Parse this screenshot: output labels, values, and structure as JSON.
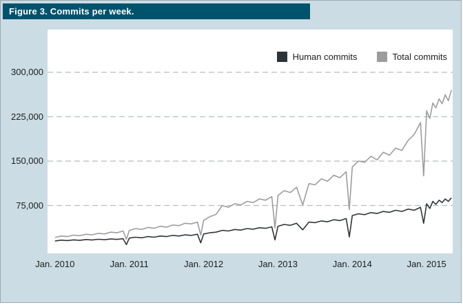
{
  "figure": {
    "title": "Figure 3. Commits per week."
  },
  "colors": {
    "header_bg": "#00536d",
    "page_bg": "#ccdce4",
    "panel_bg": "#ffffff",
    "grid": "#b5bcc0",
    "human_line": "#2e3338",
    "total_line": "#9c9c9c",
    "text": "#1b1b1b"
  },
  "chart_data": {
    "type": "line",
    "title": "Commits per week",
    "xlabel": "",
    "ylabel": "",
    "grid": "dashed-horizontal",
    "legend_position": "top-right",
    "xlim": [
      2009.9,
      2015.35
    ],
    "ylim": [
      0,
      300000
    ],
    "y_ticks": [
      {
        "value": 75000,
        "label": "75,000"
      },
      {
        "value": 150000,
        "label": "150,000"
      },
      {
        "value": 225000,
        "label": "225,000"
      },
      {
        "value": 300000,
        "label": "300,000"
      }
    ],
    "x_ticks": [
      {
        "value": 2010,
        "label": "Jan. 2010"
      },
      {
        "value": 2011,
        "label": "Jan. 2011"
      },
      {
        "value": 2012,
        "label": "Jan. 2012"
      },
      {
        "value": 2013,
        "label": "Jan. 2013"
      },
      {
        "value": 2014,
        "label": "Jan. 2014"
      },
      {
        "value": 2015,
        "label": "Jan. 2015"
      }
    ],
    "x": [
      2010.0,
      2010.083,
      2010.167,
      2010.25,
      2010.333,
      2010.417,
      2010.5,
      2010.583,
      2010.667,
      2010.75,
      2010.833,
      2010.917,
      2010.96,
      2011.0,
      2011.083,
      2011.167,
      2011.25,
      2011.333,
      2011.417,
      2011.5,
      2011.583,
      2011.667,
      2011.75,
      2011.833,
      2011.917,
      2011.96,
      2012.0,
      2012.083,
      2012.167,
      2012.25,
      2012.333,
      2012.417,
      2012.5,
      2012.583,
      2012.667,
      2012.75,
      2012.833,
      2012.917,
      2012.96,
      2013.0,
      2013.083,
      2013.167,
      2013.25,
      2013.333,
      2013.417,
      2013.5,
      2013.583,
      2013.667,
      2013.75,
      2013.833,
      2013.917,
      2013.96,
      2014.0,
      2014.083,
      2014.167,
      2014.25,
      2014.333,
      2014.417,
      2014.5,
      2014.583,
      2014.667,
      2014.75,
      2014.833,
      2014.917,
      2014.96,
      2015.0,
      2015.042,
      2015.083,
      2015.125,
      2015.167,
      2015.208,
      2015.25,
      2015.292,
      2015.333
    ],
    "series": [
      {
        "name": "Human commits",
        "color": "#2e3338",
        "values": [
          15000,
          16500,
          15800,
          17000,
          16200,
          17500,
          16800,
          18000,
          17200,
          18500,
          17800,
          19000,
          9000,
          20000,
          21500,
          20500,
          22500,
          21500,
          23500,
          22500,
          24500,
          23500,
          25500,
          24500,
          26500,
          12000,
          27000,
          29000,
          30000,
          33000,
          32000,
          34500,
          33500,
          36000,
          35000,
          37500,
          36500,
          39000,
          17000,
          40000,
          43000,
          41500,
          45000,
          34000,
          47000,
          46000,
          49000,
          47500,
          51000,
          49500,
          53000,
          22000,
          58000,
          61000,
          59500,
          63000,
          61500,
          65000,
          63500,
          67000,
          65000,
          69000,
          67000,
          72000,
          45000,
          78000,
          70000,
          82000,
          77000,
          84000,
          80000,
          86000,
          82000,
          88000
        ]
      },
      {
        "name": "Total commits",
        "color": "#9c9c9c",
        "values": [
          21000,
          23500,
          22500,
          25000,
          24000,
          26500,
          25500,
          28000,
          27000,
          30000,
          29000,
          32000,
          18000,
          33000,
          36000,
          34500,
          38000,
          36500,
          40000,
          38500,
          42000,
          41000,
          45000,
          44000,
          47000,
          25000,
          50000,
          56000,
          60000,
          75000,
          72000,
          78000,
          76000,
          82000,
          80000,
          86000,
          84000,
          90000,
          37000,
          92000,
          100000,
          97000,
          106000,
          76000,
          112000,
          110000,
          120000,
          116000,
          126000,
          122000,
          132000,
          68000,
          140000,
          150000,
          148000,
          158000,
          152000,
          165000,
          160000,
          172000,
          168000,
          185000,
          195000,
          215000,
          125000,
          235000,
          222000,
          248000,
          240000,
          255000,
          247000,
          262000,
          252000,
          270000
        ]
      }
    ]
  }
}
